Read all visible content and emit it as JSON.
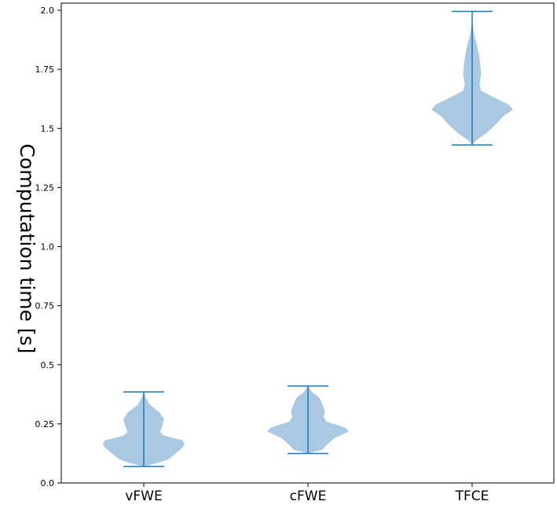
{
  "chart_data": {
    "type": "violin",
    "ylabel": "Computation time [s]",
    "ylim": [
      0.0,
      2.0
    ],
    "yticks": [
      0.0,
      0.25,
      0.5,
      0.75,
      1.0,
      1.25,
      1.5,
      1.75,
      2.0
    ],
    "ytick_labels": [
      "0.0",
      "0.25",
      "0.5",
      "0.75",
      "1.0",
      "1.25",
      "1.5",
      "1.75",
      "2.0"
    ],
    "categories": [
      "vFWE",
      "cFWE",
      "TFCE"
    ],
    "series": [
      {
        "name": "vFWE",
        "min": 0.07,
        "max": 0.385,
        "density": [
          [
            0.07,
            0.0
          ],
          [
            0.085,
            0.35
          ],
          [
            0.1,
            0.6
          ],
          [
            0.12,
            0.75
          ],
          [
            0.15,
            0.95
          ],
          [
            0.165,
            1.0
          ],
          [
            0.18,
            0.95
          ],
          [
            0.2,
            0.5
          ],
          [
            0.215,
            0.4
          ],
          [
            0.24,
            0.45
          ],
          [
            0.27,
            0.5
          ],
          [
            0.3,
            0.38
          ],
          [
            0.33,
            0.15
          ],
          [
            0.36,
            0.05
          ],
          [
            0.385,
            0.0
          ]
        ]
      },
      {
        "name": "cFWE",
        "min": 0.125,
        "max": 0.41,
        "density": [
          [
            0.125,
            0.0
          ],
          [
            0.14,
            0.35
          ],
          [
            0.16,
            0.45
          ],
          [
            0.19,
            0.65
          ],
          [
            0.21,
            0.9
          ],
          [
            0.22,
            1.0
          ],
          [
            0.235,
            0.9
          ],
          [
            0.26,
            0.45
          ],
          [
            0.28,
            0.38
          ],
          [
            0.3,
            0.42
          ],
          [
            0.33,
            0.36
          ],
          [
            0.36,
            0.28
          ],
          [
            0.385,
            0.1
          ],
          [
            0.41,
            0.0
          ]
        ]
      },
      {
        "name": "TFCE",
        "min": 1.43,
        "max": 1.995,
        "density": [
          [
            1.43,
            0.0
          ],
          [
            1.45,
            0.1
          ],
          [
            1.48,
            0.35
          ],
          [
            1.52,
            0.6
          ],
          [
            1.55,
            0.75
          ],
          [
            1.58,
            1.0
          ],
          [
            1.6,
            0.9
          ],
          [
            1.63,
            0.55
          ],
          [
            1.66,
            0.22
          ],
          [
            1.69,
            0.18
          ],
          [
            1.73,
            0.22
          ],
          [
            1.77,
            0.2
          ],
          [
            1.81,
            0.17
          ],
          [
            1.86,
            0.11
          ],
          [
            1.89,
            0.06
          ],
          [
            1.93,
            0.02
          ],
          [
            1.995,
            0.0
          ]
        ]
      }
    ],
    "colors": {
      "violin_fill": "#a9c9e3",
      "lines": "#1f77b4",
      "axes": "#000000"
    },
    "grid": false,
    "legend": "none"
  }
}
